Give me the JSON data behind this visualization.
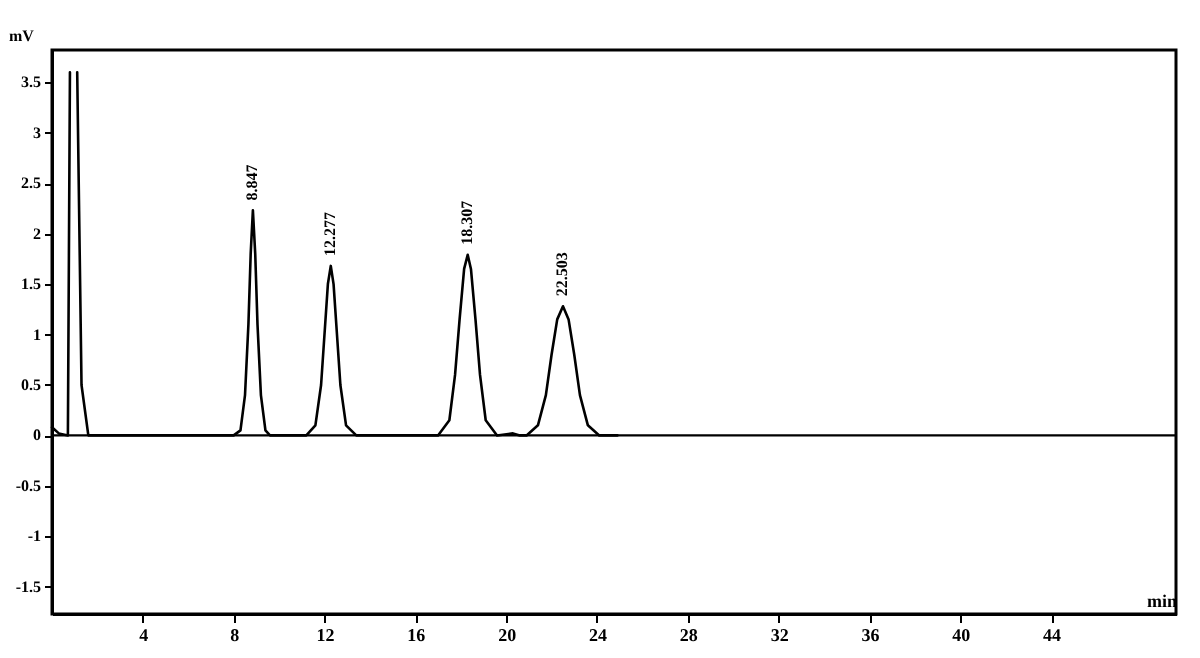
{
  "chart_data": {
    "type": "line",
    "xlabel": "min",
    "ylabel": "mV",
    "x": [
      0,
      0.3,
      0.7,
      0.79,
      0.95,
      1.11,
      1.3,
      1.6,
      4,
      8.0,
      8.3,
      8.5,
      8.65,
      8.75,
      8.847,
      8.95,
      9.05,
      9.2,
      9.4,
      9.6,
      11.2,
      11.6,
      11.85,
      12.0,
      12.15,
      12.277,
      12.4,
      12.55,
      12.7,
      12.95,
      13.4,
      17.0,
      17.5,
      17.75,
      17.95,
      18.15,
      18.307,
      18.45,
      18.65,
      18.85,
      19.1,
      19.6,
      20.3,
      20.6,
      20.9,
      21.4,
      21.75,
      22.0,
      22.25,
      22.503,
      22.75,
      23.0,
      23.25,
      23.6,
      24.1,
      24.9
    ],
    "series": [
      {
        "color": "#000000",
        "values": [
          0.08,
          0.02,
          0,
          3.6,
          null,
          3.6,
          0.5,
          0,
          0,
          0,
          0.05,
          0.4,
          1.1,
          1.8,
          2.23,
          1.8,
          1.1,
          0.4,
          0.05,
          0,
          0,
          0.1,
          0.5,
          1.0,
          1.5,
          1.68,
          1.5,
          1.0,
          0.5,
          0.1,
          0,
          0,
          0.15,
          0.6,
          1.15,
          1.65,
          1.79,
          1.65,
          1.15,
          0.6,
          0.15,
          0,
          0.02,
          0,
          0,
          0.1,
          0.4,
          0.8,
          1.15,
          1.28,
          1.15,
          0.8,
          0.4,
          0.1,
          0,
          0
        ]
      }
    ],
    "xlim": [
      0,
      49.5
    ],
    "xticks": [
      4,
      8,
      12,
      16,
      20,
      24,
      28,
      32,
      36,
      40,
      44
    ],
    "ylim": [
      -1.77,
      3.82
    ],
    "yticks": [
      -1.5,
      -1,
      -0.5,
      0,
      0.5,
      1,
      1.5,
      2,
      2.5,
      3,
      3.5
    ],
    "ref_lines": [
      {
        "axis": "y",
        "value": 0,
        "color": "#000000"
      }
    ],
    "annotations": [
      {
        "text": "8.847",
        "x": 8.847,
        "y": 2.23
      },
      {
        "text": "12.277",
        "x": 12.277,
        "y": 1.68
      },
      {
        "text": "18.307",
        "x": 18.307,
        "y": 1.79
      },
      {
        "text": "22.503",
        "x": 22.503,
        "y": 1.28
      }
    ],
    "grid": false,
    "marker": "none",
    "line_style": "solid"
  }
}
